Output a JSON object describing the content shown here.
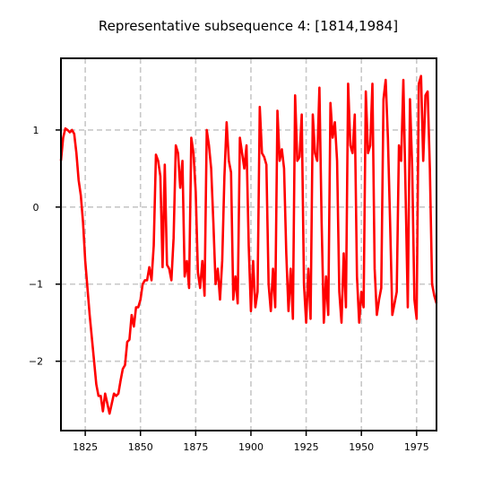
{
  "chart_data": {
    "type": "line",
    "title": "Representative subsequence 4: [1814,1984]",
    "xlim": [
      1814,
      1984
    ],
    "ylim": [
      -2.9,
      1.93
    ],
    "xticks": [
      1825,
      1850,
      1875,
      1900,
      1925,
      1950,
      1975
    ],
    "yticks": [
      {
        "value": -2,
        "label": "−2"
      },
      {
        "value": -1,
        "label": "−1"
      },
      0,
      1
    ],
    "grid": true,
    "x": [
      1814,
      1815,
      1816,
      1817,
      1818,
      1819,
      1820,
      1821,
      1822,
      1823,
      1824,
      1825,
      1826,
      1827,
      1828,
      1829,
      1830,
      1831,
      1832,
      1833,
      1834,
      1835,
      1836,
      1837,
      1838,
      1839,
      1840,
      1841,
      1842,
      1843,
      1844,
      1845,
      1846,
      1847,
      1848,
      1849,
      1850,
      1851,
      1852,
      1853,
      1854,
      1855,
      1856,
      1857,
      1858,
      1859,
      1860,
      1861,
      1862,
      1863,
      1864,
      1865,
      1866,
      1867,
      1868,
      1869,
      1870,
      1871,
      1872,
      1873,
      1874,
      1875,
      1876,
      1877,
      1878,
      1879,
      1880,
      1881,
      1882,
      1883,
      1884,
      1885,
      1886,
      1887,
      1888,
      1889,
      1890,
      1891,
      1892,
      1893,
      1894,
      1895,
      1896,
      1897,
      1898,
      1899,
      1900,
      1901,
      1902,
      1903,
      1904,
      1905,
      1906,
      1907,
      1908,
      1909,
      1910,
      1911,
      1912,
      1913,
      1914,
      1915,
      1916,
      1917,
      1918,
      1919,
      1920,
      1921,
      1922,
      1923,
      1924,
      1925,
      1926,
      1927,
      1928,
      1929,
      1930,
      1931,
      1932,
      1933,
      1934,
      1935,
      1936,
      1937,
      1938,
      1939,
      1940,
      1941,
      1942,
      1943,
      1944,
      1945,
      1946,
      1947,
      1948,
      1949,
      1950,
      1951,
      1952,
      1953,
      1954,
      1955,
      1956,
      1957,
      1958,
      1959,
      1960,
      1961,
      1962,
      1963,
      1964,
      1965,
      1966,
      1967,
      1968,
      1969,
      1970,
      1971,
      1972,
      1973,
      1974,
      1975,
      1976,
      1977,
      1978,
      1979,
      1980,
      1981,
      1982,
      1983,
      1984
    ],
    "series": [
      {
        "color": "#ff0000",
        "values": [
          0.6,
          0.9,
          1.02,
          1.0,
          0.97,
          1.0,
          0.95,
          0.7,
          0.35,
          0.15,
          -0.2,
          -0.7,
          -1.05,
          -1.4,
          -1.7,
          -2.0,
          -2.3,
          -2.45,
          -2.45,
          -2.65,
          -2.42,
          -2.55,
          -2.68,
          -2.55,
          -2.42,
          -2.45,
          -2.42,
          -2.25,
          -2.1,
          -2.05,
          -1.75,
          -1.72,
          -1.4,
          -1.55,
          -1.3,
          -1.3,
          -1.2,
          -1.0,
          -0.95,
          -0.95,
          -0.78,
          -0.95,
          -0.5,
          0.68,
          0.6,
          0.4,
          -0.78,
          0.55,
          -0.75,
          -0.8,
          -0.95,
          -0.4,
          0.8,
          0.7,
          0.25,
          0.6,
          -0.9,
          -0.7,
          -1.05,
          0.9,
          0.7,
          0.2,
          -0.85,
          -1.05,
          -0.7,
          -1.15,
          1.0,
          0.8,
          0.5,
          -0.2,
          -1.0,
          -0.8,
          -1.2,
          -0.7,
          0.4,
          1.1,
          0.6,
          0.45,
          -1.2,
          -0.9,
          -1.25,
          0.9,
          0.7,
          0.5,
          0.8,
          -0.5,
          -1.35,
          -0.7,
          -1.3,
          -1.1,
          1.3,
          0.7,
          0.65,
          0.55,
          -1.0,
          -1.35,
          -0.8,
          -1.3,
          1.25,
          0.6,
          0.75,
          0.5,
          -0.6,
          -1.35,
          -0.8,
          -1.45,
          1.45,
          0.6,
          0.65,
          1.2,
          -1.0,
          -1.5,
          -0.8,
          -1.45,
          1.2,
          0.7,
          0.6,
          1.55,
          -0.2,
          -1.5,
          -0.9,
          -1.4,
          1.35,
          0.9,
          1.1,
          0.6,
          -1.1,
          -1.5,
          -0.6,
          -1.3,
          1.6,
          0.8,
          0.7,
          1.2,
          -0.9,
          -1.5,
          -1.1,
          -1.3,
          1.5,
          0.7,
          0.8,
          1.6,
          -0.8,
          -1.4,
          -1.2,
          -1.05,
          1.4,
          1.65,
          0.9,
          -0.2,
          -1.4,
          -1.25,
          -1.1,
          0.8,
          0.6,
          1.65,
          0.2,
          -1.3,
          1.4,
          0.5,
          -1.2,
          -1.45,
          1.6,
          1.7,
          0.6,
          1.45,
          1.5,
          0.5,
          -1.0,
          -1.15,
          -1.25
        ]
      }
    ]
  }
}
